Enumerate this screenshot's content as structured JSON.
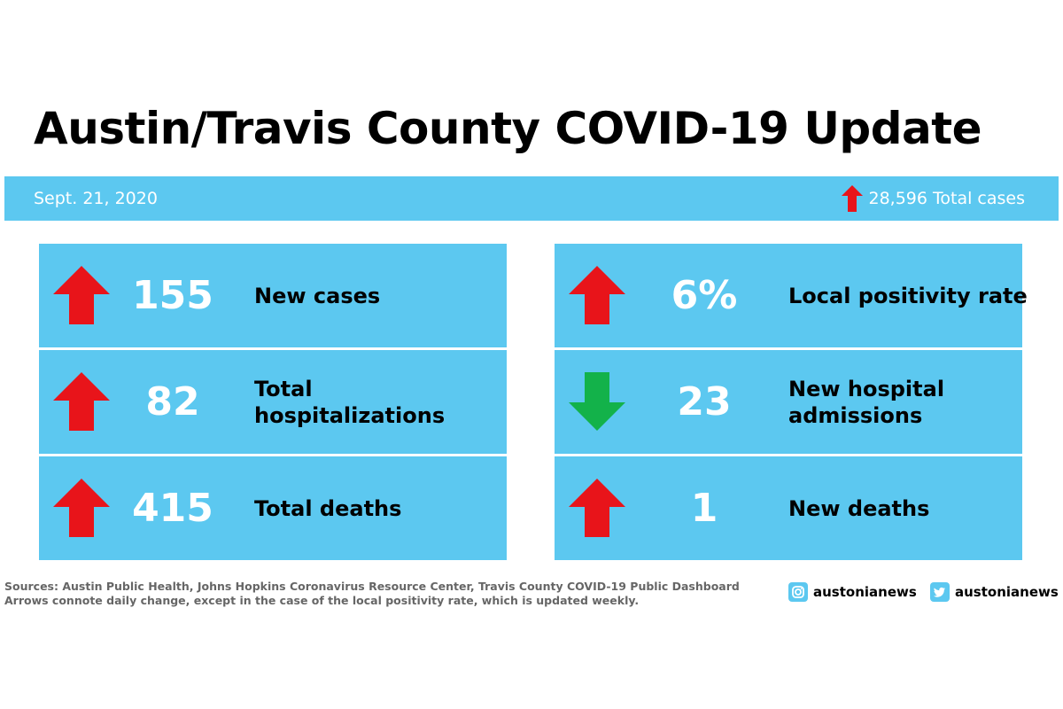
{
  "title": "Austin/Travis County COVID-19 Update",
  "date": "Sept. 21, 2020",
  "total_cases": "28,596 Total cases",
  "total_cases_trend": "up",
  "colors": {
    "panel": "#5cc8f0",
    "up": "#e8141a",
    "down": "#13b24a"
  },
  "left_stats": [
    {
      "value": "155",
      "label": "New cases",
      "trend": "up"
    },
    {
      "value": "82",
      "label": "Total hospitalizations",
      "trend": "up"
    },
    {
      "value": "415",
      "label": "Total deaths",
      "trend": "up"
    }
  ],
  "right_stats": [
    {
      "value": "6%",
      "label": "Local positivity rate",
      "trend": "up"
    },
    {
      "value": "23",
      "label": "New hospital admissions",
      "trend": "down"
    },
    {
      "value": "1",
      "label": "New deaths",
      "trend": "up"
    }
  ],
  "footer": {
    "sources": "Sources: Austin Public Health, Johns Hopkins Coronavirus Resource Center, Travis County COVID-19 Public Dashboard",
    "note": "Arrows connote daily change, except in the case of the local positivity rate, which is updated weekly."
  },
  "social": {
    "instagram": {
      "icon": "instagram-icon",
      "handle": "austonianews"
    },
    "twitter": {
      "icon": "twitter-icon",
      "handle": "austonianews"
    }
  }
}
